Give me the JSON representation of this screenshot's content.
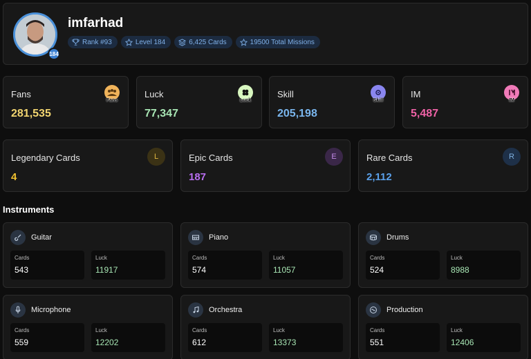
{
  "profile": {
    "username": "imfarhad",
    "level_badge": "184",
    "pills": [
      {
        "icon": "trophy-icon",
        "label": "Rank #93"
      },
      {
        "icon": "star-icon",
        "label": "Level 184"
      },
      {
        "icon": "layers-icon",
        "label": "6,425 Cards"
      },
      {
        "icon": "star-icon",
        "label": "19500 Total Missions"
      }
    ]
  },
  "stats": [
    {
      "label": "Fans",
      "value": "281,535",
      "color": "#f2d570",
      "icon": "fans-icon",
      "icon_color": "#f0b35a",
      "icon_text": "Fans"
    },
    {
      "label": "Luck",
      "value": "77,347",
      "color": "#a8e6b4",
      "icon": "clover-icon",
      "icon_color": "#d8f7c0",
      "icon_text": "Luck"
    },
    {
      "label": "Skill",
      "value": "205,198",
      "color": "#7ab6ee",
      "icon": "skill-icon",
      "icon_color": "#8a86f0",
      "icon_text": "Skill"
    },
    {
      "label": "IM",
      "value": "5,487",
      "color": "#ef62a6",
      "icon": "im-icon",
      "icon_color": "#f07ab8",
      "icon_text": "IM"
    }
  ],
  "rarities": [
    {
      "label": "Legendary Cards",
      "value": "4",
      "badge": "L",
      "color": "#f2c230",
      "badge_bg": "#3b3215",
      "badge_fg": "#e0b640"
    },
    {
      "label": "Epic Cards",
      "value": "187",
      "badge": "E",
      "color": "#b86ef0",
      "badge_bg": "#3a2748",
      "badge_fg": "#c48ae8"
    },
    {
      "label": "Rare Cards",
      "value": "2,112",
      "badge": "R",
      "color": "#5aa0ea",
      "badge_bg": "#1e3048",
      "badge_fg": "#7fb0e0"
    }
  ],
  "section_title": "Instruments",
  "instruments_labels": {
    "cards": "Cards",
    "luck": "Luck"
  },
  "instruments": [
    {
      "name": "Guitar",
      "icon": "guitar-icon",
      "cards": "543",
      "luck": "11917"
    },
    {
      "name": "Piano",
      "icon": "piano-icon",
      "cards": "574",
      "luck": "11057"
    },
    {
      "name": "Drums",
      "icon": "drum-icon",
      "cards": "524",
      "luck": "8988"
    },
    {
      "name": "Microphone",
      "icon": "microphone-icon",
      "cards": "559",
      "luck": "12202"
    },
    {
      "name": "Orchestra",
      "icon": "music-note-icon",
      "cards": "612",
      "luck": "13373"
    },
    {
      "name": "Production",
      "icon": "disc-icon",
      "cards": "551",
      "luck": "12406"
    }
  ],
  "colors": {
    "luck_value": "#a8e6b4",
    "accent": "#4a90d9"
  }
}
